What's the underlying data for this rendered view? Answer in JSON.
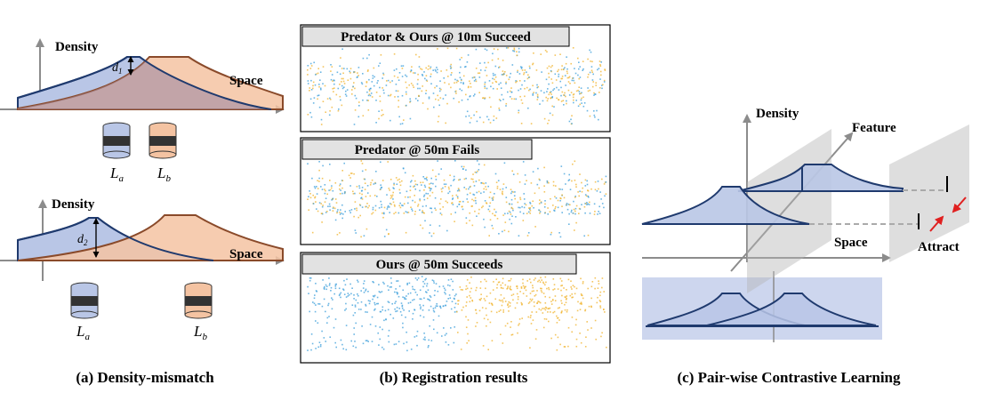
{
  "panel_a": {
    "top": {
      "ylabel": "Density",
      "xlabel": "Space",
      "gap": "d",
      "gap_sub": "1",
      "lidar_a": "L",
      "lidar_a_sub": "a",
      "lidar_b": "L",
      "lidar_b_sub": "b"
    },
    "bottom": {
      "ylabel": "Density",
      "xlabel": "Space",
      "gap": "d",
      "gap_sub": "2",
      "lidar_a": "L",
      "lidar_a_sub": "a",
      "lidar_b": "L",
      "lidar_b_sub": "b"
    },
    "caption": "(a) Density-mismatch"
  },
  "panel_b": {
    "rows": [
      {
        "title": "Predator & Ours @ 10m Succeed"
      },
      {
        "title": "Predator @ 50m Fails"
      },
      {
        "title": "Ours @ 50m Succeeds"
      }
    ],
    "caption": "(b) Registration results"
  },
  "panel_c": {
    "density_label": "Density",
    "feature_label": "Feature",
    "space_label": "Space",
    "attract_label": "Attract",
    "caption": "(c) Pair-wise Contrastive Learning"
  },
  "colors": {
    "blue_fill": "#b9c6e6",
    "blue_stroke": "#1f3a6e",
    "orange_fill": "#f4c3a2",
    "orange_stroke": "#8a4a2a",
    "overlap_fill": "#c2a9b6",
    "axis": "#8c8c8c",
    "cloud_blue": "#3a9ed9",
    "cloud_orange": "#f0b12a",
    "arrow_red": "#e02020"
  }
}
